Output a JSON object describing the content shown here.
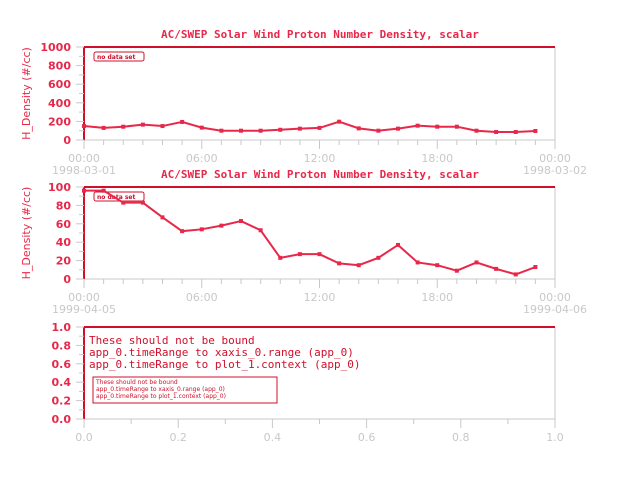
{
  "colors": {
    "line": "#e8284a",
    "frame": "#d0102a",
    "axis": "#c8c8c8"
  },
  "chart_data": [
    {
      "type": "line",
      "title": "AC/SWEP  Solar Wind Proton Number Density, scalar",
      "ylabel": "H_Density (#/cc)",
      "xlabel": "",
      "ylim": [
        0,
        1000
      ],
      "yticks": [
        "0",
        "200",
        "400",
        "600",
        "800",
        "1000"
      ],
      "xticks": [
        "00:00",
        "06:00",
        "12:00",
        "18:00",
        "00:00"
      ],
      "xdates": [
        "1998-03-01",
        "",
        "",
        "",
        "1998-03-02"
      ],
      "xlim_hours": [
        0,
        24
      ],
      "legend": "no data set",
      "x": [
        0,
        1,
        2,
        3,
        4,
        5,
        6,
        7,
        8,
        9,
        10,
        11,
        12,
        13,
        14,
        15,
        16,
        17,
        18,
        19,
        20,
        21,
        22,
        23
      ],
      "values": [
        150,
        130,
        143,
        165,
        150,
        194,
        133,
        100,
        100,
        100,
        110,
        122,
        130,
        197,
        125,
        100,
        122,
        154,
        143,
        143,
        100,
        86,
        86,
        97
      ]
    },
    {
      "type": "line",
      "title": "AC/SWEP  Solar Wind Proton Number Density, scalar",
      "ylabel": "H_Density (#/cc)",
      "xlabel": "",
      "ylim": [
        0,
        100
      ],
      "yticks": [
        "0",
        "20",
        "40",
        "60",
        "80",
        "100"
      ],
      "xticks": [
        "00:00",
        "06:00",
        "12:00",
        "18:00",
        "00:00"
      ],
      "xdates": [
        "1999-04-05",
        "",
        "",
        "",
        "1999-04-06"
      ],
      "xlim_hours": [
        0,
        24
      ],
      "legend": "no data set",
      "x": [
        0,
        1,
        2,
        3,
        4,
        5,
        6,
        7,
        8,
        9,
        10,
        11,
        12,
        13,
        14,
        15,
        16,
        17,
        18,
        19,
        20,
        21,
        22,
        23
      ],
      "values": [
        96,
        96,
        83,
        83,
        67,
        52,
        54,
        58,
        63,
        53,
        23,
        27,
        27,
        17,
        15,
        23,
        37,
        18,
        15,
        9,
        18,
        11,
        5,
        13
      ]
    },
    {
      "type": "line",
      "title": "",
      "ylim": [
        0,
        1
      ],
      "xlim": [
        0,
        1
      ],
      "yticks": [
        "0.0",
        "0.2",
        "0.4",
        "0.6",
        "0.8",
        "1.0"
      ],
      "xticks": [
        "0.0",
        "0.2",
        "0.4",
        "0.6",
        "0.8",
        "1.0"
      ],
      "annotation": [
        "These should not be bound",
        "app_0.timeRange to xaxis_0.range  (app_0)",
        "app_0.timeRange to plot_1.context  (app_0)"
      ]
    }
  ]
}
